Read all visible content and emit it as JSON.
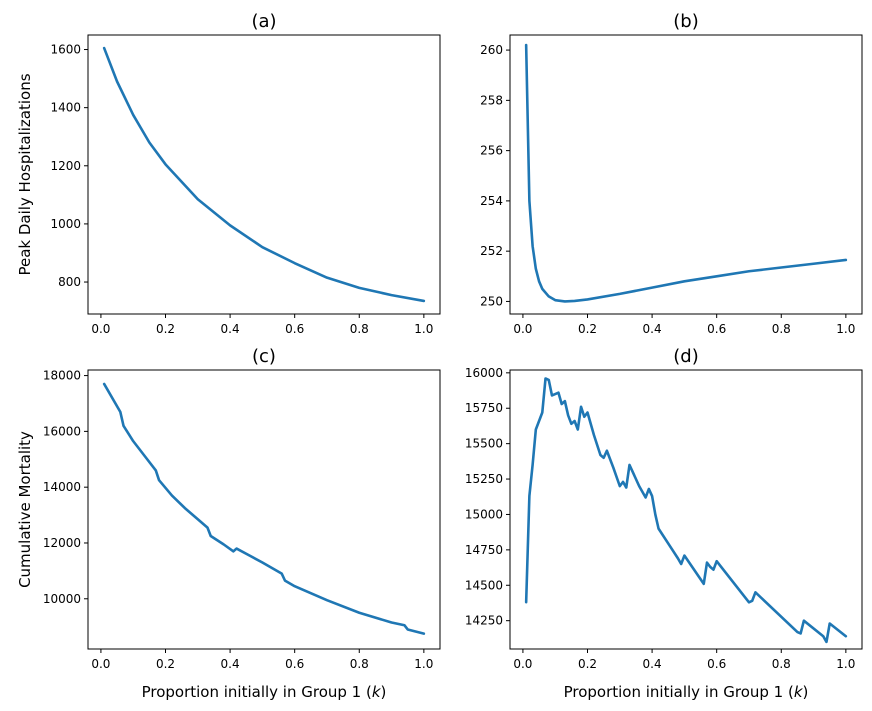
{
  "chart_data": [
    {
      "type": "line",
      "title": "(a)",
      "xlabel": "",
      "ylabel": "Peak Daily Hospitalizations",
      "xlim": [
        -0.04,
        1.05
      ],
      "ylim": [
        690,
        1650
      ],
      "xticks": [
        "0.0",
        "0.2",
        "0.4",
        "0.6",
        "0.8",
        "1.0"
      ],
      "yticks": [
        "800",
        "1000",
        "1200",
        "1400",
        "1600"
      ],
      "color": "#1f77b4",
      "x": [
        0.01,
        0.05,
        0.1,
        0.15,
        0.2,
        0.3,
        0.4,
        0.5,
        0.6,
        0.7,
        0.8,
        0.9,
        1.0
      ],
      "y": [
        1605,
        1490,
        1375,
        1280,
        1205,
        1085,
        995,
        920,
        865,
        815,
        780,
        755,
        735
      ]
    },
    {
      "type": "line",
      "title": "(b)",
      "xlabel": "",
      "ylabel": "",
      "xlim": [
        -0.04,
        1.05
      ],
      "ylim": [
        249.5,
        260.6
      ],
      "xticks": [
        "0.0",
        "0.2",
        "0.4",
        "0.6",
        "0.8",
        "1.0"
      ],
      "yticks": [
        "250",
        "252",
        "254",
        "256",
        "258",
        "260"
      ],
      "color": "#1f77b4",
      "x": [
        0.01,
        0.02,
        0.03,
        0.04,
        0.05,
        0.06,
        0.08,
        0.1,
        0.13,
        0.16,
        0.2,
        0.3,
        0.4,
        0.5,
        0.6,
        0.7,
        0.8,
        0.9,
        1.0
      ],
      "y": [
        260.2,
        254.0,
        252.2,
        251.3,
        250.8,
        250.5,
        250.2,
        250.05,
        250.0,
        250.02,
        250.08,
        250.3,
        250.55,
        250.8,
        251.0,
        251.2,
        251.35,
        251.5,
        251.65
      ]
    },
    {
      "type": "line",
      "title": "(c)",
      "xlabel": "Proportion initially in Group 1 ($k$)",
      "ylabel": "Cumulative Mortality",
      "xlim": [
        -0.04,
        1.05
      ],
      "ylim": [
        8200,
        18200
      ],
      "xticks": [
        "0.0",
        "0.2",
        "0.4",
        "0.6",
        "0.8",
        "1.0"
      ],
      "yticks": [
        "10000",
        "12000",
        "14000",
        "16000",
        "18000"
      ],
      "color": "#1f77b4",
      "x": [
        0.01,
        0.06,
        0.07,
        0.1,
        0.14,
        0.17,
        0.18,
        0.22,
        0.26,
        0.3,
        0.33,
        0.34,
        0.38,
        0.41,
        0.42,
        0.46,
        0.5,
        0.56,
        0.57,
        0.6,
        0.7,
        0.8,
        0.9,
        0.94,
        0.95,
        1.0
      ],
      "y": [
        17700,
        16700,
        16200,
        15650,
        15050,
        14600,
        14250,
        13700,
        13250,
        12850,
        12550,
        12250,
        11950,
        11700,
        11800,
        11550,
        11300,
        10900,
        10650,
        10450,
        9950,
        9500,
        9150,
        9050,
        8900,
        8750
      ]
    },
    {
      "type": "line",
      "title": "(d)",
      "xlabel": "Proportion initially in Group 1 ($k$)",
      "ylabel": "",
      "xlim": [
        -0.04,
        1.05
      ],
      "ylim": [
        14050,
        16020
      ],
      "xticks": [
        "0.0",
        "0.2",
        "0.4",
        "0.6",
        "0.8",
        "1.0"
      ],
      "yticks": [
        "14250",
        "14500",
        "14750",
        "15000",
        "15250",
        "15500",
        "15750",
        "16000"
      ],
      "color": "#1f77b4",
      "x": [
        0.01,
        0.02,
        0.03,
        0.04,
        0.06,
        0.07,
        0.08,
        0.09,
        0.11,
        0.12,
        0.13,
        0.14,
        0.15,
        0.16,
        0.17,
        0.18,
        0.19,
        0.2,
        0.22,
        0.24,
        0.25,
        0.26,
        0.28,
        0.3,
        0.31,
        0.32,
        0.33,
        0.34,
        0.36,
        0.38,
        0.39,
        0.4,
        0.41,
        0.42,
        0.46,
        0.48,
        0.49,
        0.5,
        0.56,
        0.57,
        0.58,
        0.59,
        0.6,
        0.7,
        0.71,
        0.72,
        0.85,
        0.86,
        0.87,
        0.93,
        0.94,
        0.95,
        1.0
      ],
      "y": [
        14380,
        15130,
        15350,
        15600,
        15720,
        15960,
        15950,
        15840,
        15860,
        15780,
        15800,
        15700,
        15640,
        15660,
        15600,
        15760,
        15690,
        15720,
        15560,
        15420,
        15400,
        15450,
        15330,
        15200,
        15230,
        15190,
        15350,
        15300,
        15200,
        15120,
        15180,
        15130,
        15000,
        14900,
        14760,
        14690,
        14650,
        14710,
        14510,
        14660,
        14630,
        14610,
        14670,
        14380,
        14390,
        14450,
        14170,
        14160,
        14250,
        14140,
        14100,
        14230,
        14140
      ]
    }
  ]
}
